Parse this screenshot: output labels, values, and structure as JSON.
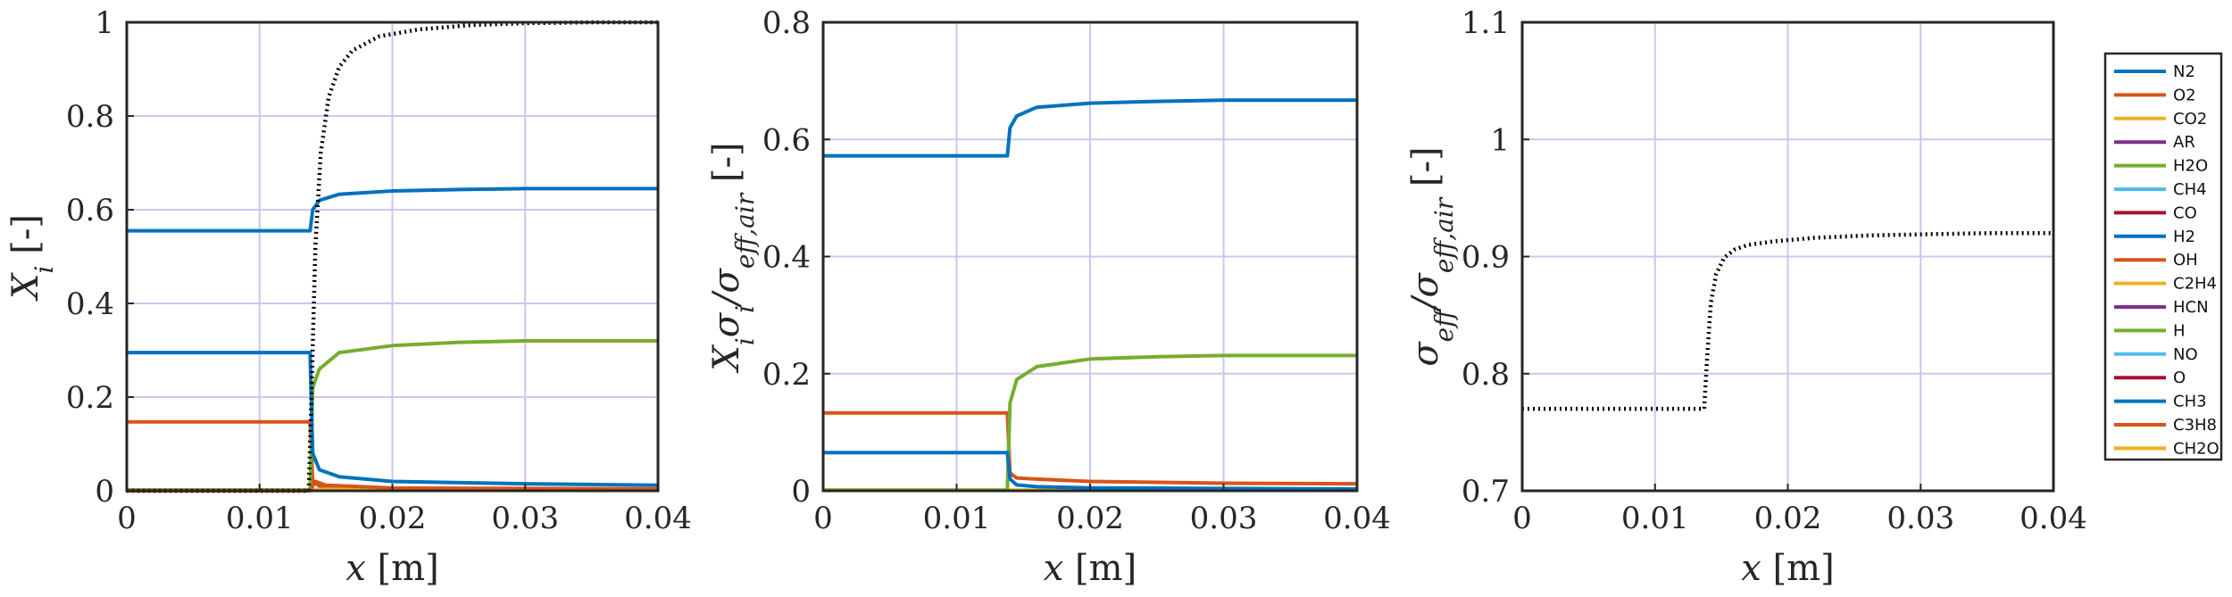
{
  "figure": {
    "panels": [
      {
        "ylabel": "X_i [-]"
      },
      {
        "ylabel": "X_i σ_i / σ_eff,air [-]"
      },
      {
        "ylabel": "σ_eff / σ_eff,air [-]"
      }
    ],
    "xlabel": "x [m]"
  },
  "chart_data": [
    {
      "type": "line",
      "xlabel": "x [m]",
      "ylabel": "X_i [-]",
      "xlim": [
        0,
        0.04
      ],
      "ylim": [
        0,
        1
      ],
      "xticks": [
        "0",
        "0.01",
        "0.02",
        "0.03",
        "0.04"
      ],
      "yticks": [
        "0",
        "0.2",
        "0.4",
        "0.6",
        "0.8",
        "1"
      ],
      "grid": true,
      "series": [
        {
          "name": "N2",
          "color": "#0072BD",
          "style": "solid",
          "x": [
            0,
            0.0138,
            0.014,
            0.0145,
            0.016,
            0.02,
            0.025,
            0.03,
            0.04
          ],
          "y": [
            0.555,
            0.555,
            0.6,
            0.62,
            0.633,
            0.64,
            0.643,
            0.645,
            0.645
          ]
        },
        {
          "name": "O2",
          "color": "#D95319",
          "style": "solid",
          "x": [
            0,
            0.0138,
            0.014,
            0.0145,
            0.016,
            0.02,
            0.03,
            0.04
          ],
          "y": [
            0.147,
            0.147,
            0.02,
            0.01,
            0.005,
            0.003,
            0.002,
            0.002
          ]
        },
        {
          "name": "CO2",
          "color": "#EDB120",
          "style": "solid",
          "x": [
            0,
            0.0138,
            0.014,
            0.015,
            0.02,
            0.03,
            0.04
          ],
          "y": [
            0.0003,
            0.0003,
            0.002,
            0.003,
            0.003,
            0.003,
            0.003
          ]
        },
        {
          "name": "H2O",
          "color": "#77AC30",
          "style": "solid",
          "x": [
            0,
            0.0138,
            0.014,
            0.0145,
            0.016,
            0.02,
            0.025,
            0.03,
            0.04
          ],
          "y": [
            0.002,
            0.002,
            0.22,
            0.26,
            0.295,
            0.31,
            0.317,
            0.32,
            0.32
          ]
        },
        {
          "name": "H2",
          "color": "#0072BD",
          "style": "solid",
          "x": [
            0,
            0.0138,
            0.014,
            0.0145,
            0.016,
            0.02,
            0.03,
            0.04
          ],
          "y": [
            0.295,
            0.295,
            0.08,
            0.045,
            0.03,
            0.02,
            0.015,
            0.012
          ]
        },
        {
          "name": "OH",
          "color": "#D95319",
          "style": "solid",
          "x": [
            0,
            0.0138,
            0.0142,
            0.015,
            0.02,
            0.04
          ],
          "y": [
            0,
            0,
            0.02,
            0.012,
            0.006,
            0.004
          ]
        },
        {
          "name": "σ_eff (dotted)",
          "color": "#000000",
          "style": "dotted",
          "x": [
            0,
            0.0137,
            0.0139,
            0.0142,
            0.0146,
            0.0152,
            0.016,
            0.017,
            0.019,
            0.022,
            0.026,
            0.03,
            0.035,
            0.04
          ],
          "y": [
            0,
            0,
            0.2,
            0.52,
            0.72,
            0.84,
            0.905,
            0.94,
            0.97,
            0.985,
            0.994,
            0.998,
            1.0,
            1.0
          ]
        }
      ]
    },
    {
      "type": "line",
      "xlabel": "x [m]",
      "ylabel": "X_i σ_i / σ_eff,air [-]",
      "xlim": [
        0,
        0.04
      ],
      "ylim": [
        0,
        0.8
      ],
      "xticks": [
        "0",
        "0.01",
        "0.02",
        "0.03",
        "0.04"
      ],
      "yticks": [
        "0",
        "0.2",
        "0.4",
        "0.6",
        "0.8"
      ],
      "grid": true,
      "series": [
        {
          "name": "N2",
          "color": "#0072BD",
          "style": "solid",
          "x": [
            0,
            0.0138,
            0.014,
            0.0145,
            0.016,
            0.02,
            0.025,
            0.03,
            0.04
          ],
          "y": [
            0.572,
            0.572,
            0.62,
            0.64,
            0.655,
            0.662,
            0.665,
            0.667,
            0.667
          ]
        },
        {
          "name": "O2",
          "color": "#D95319",
          "style": "solid",
          "x": [
            0,
            0.0138,
            0.014,
            0.0145,
            0.016,
            0.02,
            0.03,
            0.04
          ],
          "y": [
            0.133,
            0.133,
            0.03,
            0.022,
            0.02,
            0.016,
            0.013,
            0.012
          ]
        },
        {
          "name": "CO2",
          "color": "#EDB120",
          "style": "solid",
          "x": [
            0,
            0.04
          ],
          "y": [
            0.001,
            0.001
          ]
        },
        {
          "name": "H2O",
          "color": "#77AC30",
          "style": "solid",
          "x": [
            0,
            0.0138,
            0.014,
            0.0145,
            0.016,
            0.02,
            0.025,
            0.03,
            0.04
          ],
          "y": [
            0.001,
            0.001,
            0.15,
            0.19,
            0.212,
            0.225,
            0.229,
            0.231,
            0.231
          ]
        },
        {
          "name": "H2",
          "color": "#0072BD",
          "style": "solid",
          "x": [
            0,
            0.0138,
            0.014,
            0.0145,
            0.016,
            0.02,
            0.03,
            0.04
          ],
          "y": [
            0.065,
            0.065,
            0.02,
            0.01,
            0.007,
            0.005,
            0.004,
            0.003
          ]
        }
      ]
    },
    {
      "type": "line",
      "xlabel": "x [m]",
      "ylabel": "σ_eff / σ_eff,air [-]",
      "xlim": [
        0,
        0.04
      ],
      "ylim": [
        0.7,
        1.1
      ],
      "xticks": [
        "0",
        "0.01",
        "0.02",
        "0.03",
        "0.04"
      ],
      "yticks": [
        "0.7",
        "0.8",
        "0.9",
        "1",
        "1.1"
      ],
      "grid": true,
      "series": [
        {
          "color": "#000000",
          "style": "dotted",
          "x": [
            0,
            0.0137,
            0.0139,
            0.0142,
            0.0146,
            0.0152,
            0.016,
            0.017,
            0.019,
            0.022,
            0.026,
            0.03,
            0.035,
            0.04
          ],
          "y": [
            0.77,
            0.77,
            0.81,
            0.86,
            0.885,
            0.899,
            0.906,
            0.91,
            0.913,
            0.916,
            0.918,
            0.919,
            0.92,
            0.92
          ]
        }
      ]
    }
  ],
  "legend": {
    "placement": "right",
    "entries": [
      {
        "label": "N2",
        "color": "#0072BD"
      },
      {
        "label": "O2",
        "color": "#D95319"
      },
      {
        "label": "CO2",
        "color": "#EDB120"
      },
      {
        "label": "AR",
        "color": "#7E2F8E"
      },
      {
        "label": "H2O",
        "color": "#77AC30"
      },
      {
        "label": "CH4",
        "color": "#4DBEEE"
      },
      {
        "label": "CO",
        "color": "#A2142F"
      },
      {
        "label": "H2",
        "color": "#0072BD"
      },
      {
        "label": "OH",
        "color": "#D95319"
      },
      {
        "label": "C2H4",
        "color": "#EDB120"
      },
      {
        "label": "HCN",
        "color": "#7E2F8E"
      },
      {
        "label": "H",
        "color": "#77AC30"
      },
      {
        "label": "NO",
        "color": "#4DBEEE"
      },
      {
        "label": "O",
        "color": "#A2142F"
      },
      {
        "label": "CH3",
        "color": "#0072BD"
      },
      {
        "label": "C3H8",
        "color": "#D95319"
      },
      {
        "label": "CH2O",
        "color": "#EDB120"
      }
    ]
  }
}
